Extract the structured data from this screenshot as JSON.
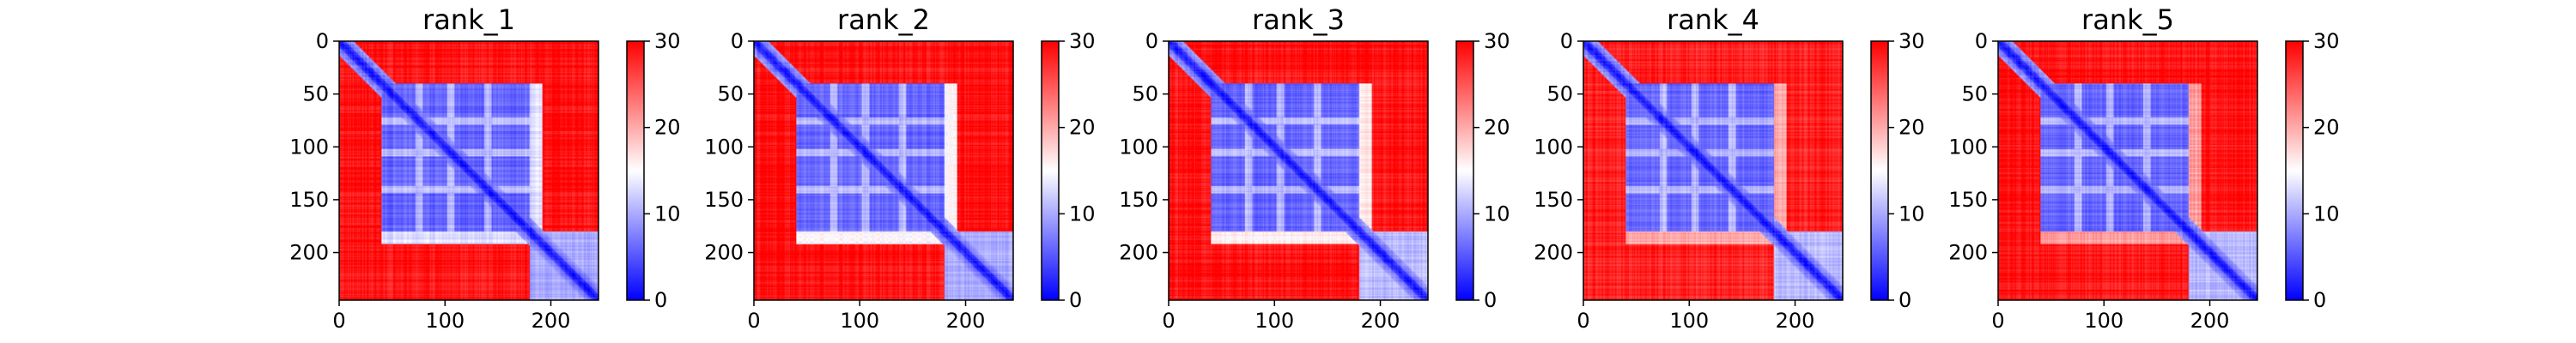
{
  "figure": {
    "background": "#ffffff",
    "colormap": {
      "name": "bwr",
      "stops": [
        "#0000ff",
        "#ffffff",
        "#ff0000"
      ],
      "range": [
        0,
        30
      ],
      "ticks": [
        0,
        10,
        20,
        30
      ]
    }
  },
  "chart_data": [
    {
      "type": "heatmap",
      "title": "rank_1",
      "x_ticks": [
        0,
        100,
        200
      ],
      "y_ticks": [
        0,
        50,
        100,
        150,
        200
      ],
      "xlim": [
        0,
        245
      ],
      "ylim": [
        245,
        0
      ],
      "matrix_size": 245,
      "colorbar": {
        "ticks": [
          0,
          10,
          20,
          30
        ],
        "range": [
          0,
          30
        ]
      },
      "low_value_blocks": [
        {
          "from": 40,
          "to": 180,
          "value": 6
        },
        {
          "from": 180,
          "to": 245,
          "value": 10
        }
      ],
      "off_diagonal_bands": [
        {
          "rows": [
            178,
            192
          ],
          "cols": [
            40,
            180
          ],
          "value": 13
        }
      ],
      "background_value": 29
    },
    {
      "type": "heatmap",
      "title": "rank_2",
      "x_ticks": [
        0,
        100,
        200
      ],
      "y_ticks": [
        0,
        50,
        100,
        150,
        200
      ],
      "xlim": [
        0,
        245
      ],
      "ylim": [
        245,
        0
      ],
      "matrix_size": 245,
      "colorbar": {
        "ticks": [
          0,
          10,
          20,
          30
        ],
        "range": [
          0,
          30
        ]
      },
      "low_value_blocks": [
        {
          "from": 40,
          "to": 180,
          "value": 6
        },
        {
          "from": 180,
          "to": 245,
          "value": 10
        }
      ],
      "off_diagonal_bands": [
        {
          "rows": [
            178,
            192
          ],
          "cols": [
            40,
            180
          ],
          "value": 15
        }
      ],
      "background_value": 29
    },
    {
      "type": "heatmap",
      "title": "rank_3",
      "x_ticks": [
        0,
        100,
        200
      ],
      "y_ticks": [
        0,
        50,
        100,
        150,
        200
      ],
      "xlim": [
        0,
        245
      ],
      "ylim": [
        245,
        0
      ],
      "matrix_size": 245,
      "colorbar": {
        "ticks": [
          0,
          10,
          20,
          30
        ],
        "range": [
          0,
          30
        ]
      },
      "low_value_blocks": [
        {
          "from": 40,
          "to": 180,
          "value": 6
        },
        {
          "from": 180,
          "to": 245,
          "value": 11
        }
      ],
      "off_diagonal_bands": [
        {
          "rows": [
            178,
            192
          ],
          "cols": [
            40,
            180
          ],
          "value": 16
        }
      ],
      "background_value": 29
    },
    {
      "type": "heatmap",
      "title": "rank_4",
      "x_ticks": [
        0,
        100,
        200
      ],
      "y_ticks": [
        0,
        50,
        100,
        150,
        200
      ],
      "xlim": [
        0,
        245
      ],
      "ylim": [
        245,
        0
      ],
      "matrix_size": 245,
      "colorbar": {
        "ticks": [
          0,
          10,
          20,
          30
        ],
        "range": [
          0,
          30
        ]
      },
      "low_value_blocks": [
        {
          "from": 40,
          "to": 180,
          "value": 6
        },
        {
          "from": 180,
          "to": 245,
          "value": 11
        }
      ],
      "off_diagonal_bands": [
        {
          "rows": [
            178,
            192
          ],
          "cols": [
            40,
            180
          ],
          "value": 20
        }
      ],
      "background_value": 28
    },
    {
      "type": "heatmap",
      "title": "rank_5",
      "x_ticks": [
        0,
        100,
        200
      ],
      "y_ticks": [
        0,
        50,
        100,
        150,
        200
      ],
      "xlim": [
        0,
        245
      ],
      "ylim": [
        245,
        0
      ],
      "matrix_size": 245,
      "colorbar": {
        "ticks": [
          0,
          10,
          20,
          30
        ],
        "range": [
          0,
          30
        ]
      },
      "low_value_blocks": [
        {
          "from": 40,
          "to": 180,
          "value": 6
        },
        {
          "from": 180,
          "to": 245,
          "value": 11
        }
      ],
      "off_diagonal_bands": [
        {
          "rows": [
            178,
            192
          ],
          "cols": [
            40,
            180
          ],
          "value": 21
        }
      ],
      "background_value": 29
    }
  ]
}
